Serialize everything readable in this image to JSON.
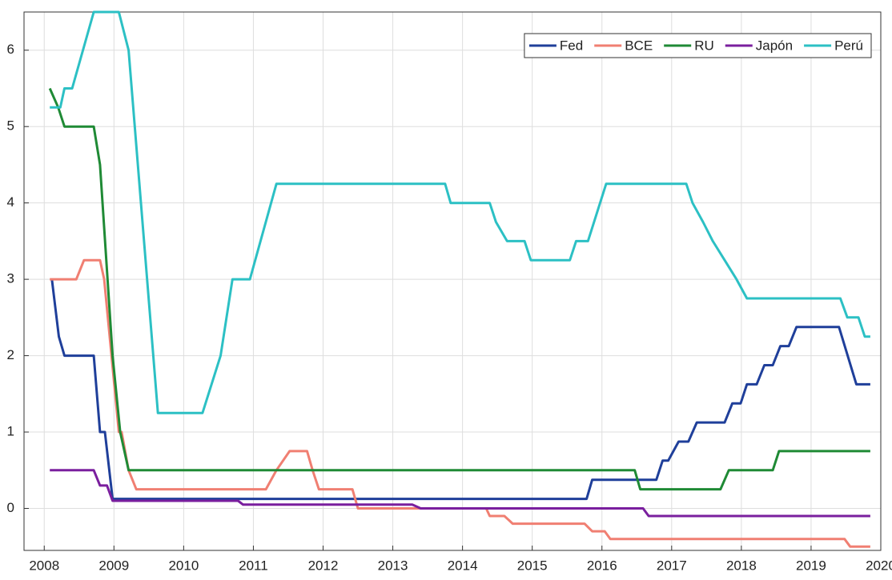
{
  "chart_data": {
    "type": "line",
    "xlim": [
      2007.71,
      2020
    ],
    "xticks": [
      2008,
      2009,
      2010,
      2011,
      2012,
      2013,
      2014,
      2015,
      2016,
      2017,
      2018,
      2019,
      2020
    ],
    "ylim": [
      -0.55,
      6.5
    ],
    "yticks": [
      0,
      1,
      2,
      3,
      4,
      5,
      6
    ],
    "grid": true,
    "legend": "top-right",
    "series": [
      {
        "name": "Fed",
        "color": "#1f3f9a",
        "x": [
          2008.11,
          2008.21,
          2008.29,
          2008.71,
          2008.8,
          2008.87,
          2008.98,
          2015.78,
          2015.86,
          2016.78,
          2016.87,
          2016.95,
          2017.1,
          2017.24,
          2017.36,
          2017.76,
          2017.87,
          2017.99,
          2018.08,
          2018.22,
          2018.33,
          2018.45,
          2018.56,
          2018.68,
          2018.79,
          2019.4,
          2019.65,
          2019.85
        ],
        "values": [
          3,
          2.25,
          2,
          2,
          1,
          1,
          0.125,
          0.125,
          0.375,
          0.375,
          0.625,
          0.625,
          0.875,
          0.875,
          1.125,
          1.125,
          1.375,
          1.375,
          1.625,
          1.625,
          1.875,
          1.875,
          2.125,
          2.125,
          2.375,
          2.375,
          1.625,
          1.625
        ]
      },
      {
        "name": "BCE",
        "color": "#f07f72",
        "x": [
          2008.08,
          2008.46,
          2008.57,
          2008.8,
          2008.86,
          2009.07,
          2009.11,
          2009.21,
          2009.32,
          2011.18,
          2011.33,
          2011.52,
          2011.77,
          2011.85,
          2011.94,
          2012.42,
          2012.5,
          2014.34,
          2014.39,
          2014.6,
          2014.72,
          2015.75,
          2015.86,
          2016.04,
          2016.12,
          2019.48,
          2019.56,
          2019.85
        ],
        "values": [
          3,
          3,
          3.25,
          3.25,
          3,
          1,
          1,
          0.5,
          0.25,
          0.25,
          0.5,
          0.75,
          0.75,
          0.5,
          0.25,
          0.25,
          0,
          0,
          -0.1,
          -0.1,
          -0.2,
          -0.2,
          -0.3,
          -0.3,
          -0.4,
          -0.4,
          -0.5,
          -0.5
        ]
      },
      {
        "name": "RU",
        "color": "#1f8a35",
        "x": [
          2008.08,
          2008.2,
          2008.29,
          2008.71,
          2008.8,
          2008.98,
          2009.09,
          2009.21,
          2016.47,
          2016.55,
          2017.7,
          2017.82,
          2018.45,
          2018.54,
          2019.85
        ],
        "values": [
          5.5,
          5.25,
          5,
          5,
          4.5,
          2,
          1,
          0.5,
          0.5,
          0.25,
          0.25,
          0.5,
          0.5,
          0.75,
          0.75
        ]
      },
      {
        "name": "Japón",
        "color": "#7a1f9e",
        "x": [
          2008.08,
          2008.71,
          2008.8,
          2008.9,
          2008.98,
          2010.78,
          2010.85,
          2013.28,
          2013.4,
          2016.59,
          2016.67,
          2019.85
        ],
        "values": [
          0.5,
          0.5,
          0.3,
          0.3,
          0.1,
          0.1,
          0.05,
          0.05,
          0,
          0,
          -0.1,
          -0.1
        ]
      },
      {
        "name": "Perú",
        "color": "#2cc0c4",
        "x": [
          2008.08,
          2008.23,
          2008.29,
          2008.4,
          2008.71,
          2009.07,
          2009.21,
          2009.63,
          2010.27,
          2010.53,
          2010.7,
          2010.95,
          2011.33,
          2013.75,
          2013.83,
          2014.39,
          2014.48,
          2014.64,
          2014.89,
          2014.98,
          2015.54,
          2015.63,
          2015.8,
          2016.06,
          2017.21,
          2017.3,
          2017.45,
          2017.59,
          2017.76,
          2017.93,
          2018.08,
          2019.42,
          2019.52,
          2019.68,
          2019.77,
          2019.85
        ],
        "values": [
          5.25,
          5.25,
          5.5,
          5.5,
          6.5,
          6.5,
          6,
          1.25,
          1.25,
          2,
          3,
          3,
          4.25,
          4.25,
          4,
          4,
          3.75,
          3.5,
          3.5,
          3.25,
          3.25,
          3.5,
          3.5,
          4.25,
          4.25,
          4,
          3.75,
          3.5,
          3.25,
          3,
          2.75,
          2.75,
          2.5,
          2.5,
          2.25,
          2.25
        ]
      }
    ]
  }
}
